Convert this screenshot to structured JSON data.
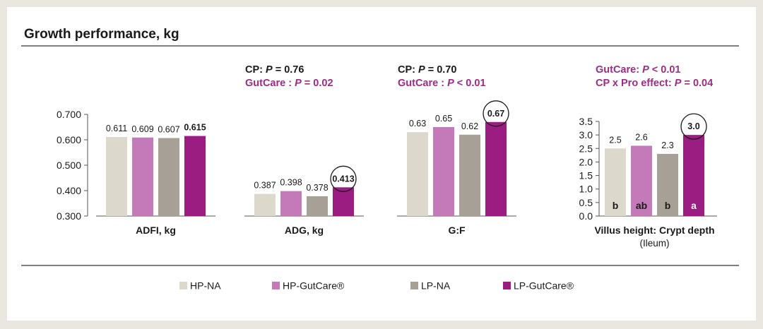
{
  "header": {
    "title": "Growth performance, kg"
  },
  "colors": {
    "HP-NA": "#dcd8cc",
    "HP-GutCare®": "#c47ab8",
    "LP-NA": "#a7a097",
    "LP-GutCare®": "#9b1d82",
    "stat_accent": "#9b2d86",
    "text": "#1a1a1a"
  },
  "legend": {
    "items": [
      "HP-NA",
      "HP-GutCare®",
      "LP-NA",
      "LP-GutCare®"
    ]
  },
  "chart_data": [
    {
      "type": "bar",
      "group": "left",
      "xlabel": "ADFI, kg",
      "categories": [
        "HP-NA",
        "HP-GutCare®",
        "LP-NA",
        "LP-GutCare®"
      ],
      "values": [
        0.611,
        0.609,
        0.607,
        0.615
      ],
      "value_labels": [
        "0.611",
        "0.609",
        "0.607",
        "0.615"
      ],
      "bold_index": 3,
      "circled_index": null,
      "stats": []
    },
    {
      "type": "bar",
      "group": "left",
      "xlabel": "ADG, kg",
      "categories": [
        "HP-NA",
        "HP-GutCare®",
        "LP-NA",
        "LP-GutCare®"
      ],
      "values": [
        0.387,
        0.398,
        0.378,
        0.413
      ],
      "value_labels": [
        "0.387",
        "0.398",
        "0.378",
        "0.413"
      ],
      "bold_index": 3,
      "circled_index": 3,
      "stats": [
        {
          "label": "CP:",
          "p": "P",
          "op": "= 0.76",
          "style": "dark"
        },
        {
          "label": "GutCare :",
          "p": "P",
          "op": "= 0.02",
          "style": "accent"
        }
      ]
    },
    {
      "type": "bar",
      "group": "left",
      "xlabel": "G:F",
      "categories": [
        "HP-NA",
        "HP-GutCare®",
        "LP-NA",
        "LP-GutCare®"
      ],
      "values": [
        0.63,
        0.65,
        0.62,
        0.67
      ],
      "value_labels": [
        "0.63",
        "0.65",
        "0.62",
        "0.67"
      ],
      "bold_index": 3,
      "circled_index": 3,
      "stats": [
        {
          "label": "CP:",
          "p": "P",
          "op": "= 0.70",
          "style": "dark"
        },
        {
          "label": "GutCare :",
          "p": "P",
          "op": "< 0.01",
          "style": "accent"
        }
      ]
    },
    {
      "type": "bar",
      "group": "right",
      "xlabel": "Villus height: Crypt depth",
      "xlabel2": "(Ileum)",
      "categories": [
        "HP-NA",
        "HP-GutCare®",
        "LP-NA",
        "LP-GutCare®"
      ],
      "values": [
        2.5,
        2.6,
        2.3,
        3.0
      ],
      "value_labels": [
        "2.5",
        "2.6",
        "2.3",
        "3.0"
      ],
      "letters": [
        "b",
        "ab",
        "b",
        "a"
      ],
      "bold_index": 3,
      "circled_index": 3,
      "stats": [
        {
          "label": "GutCare:",
          "p": "P",
          "op": "< 0.01",
          "style": "accent"
        },
        {
          "label": "CP x Pro effect:",
          "p": "P",
          "op": "= 0.04",
          "style": "accent"
        }
      ]
    }
  ],
  "axes": {
    "left": {
      "ylim": [
        0.3,
        0.7
      ],
      "ticks": [
        "0.300",
        "0.400",
        "0.500",
        "0.600",
        "0.700"
      ],
      "tick_values": [
        0.3,
        0.4,
        0.5,
        0.6,
        0.7
      ]
    },
    "right": {
      "ylim": [
        0.0,
        3.5
      ],
      "ticks": [
        "0.0",
        "0.5",
        "1.0",
        "1.5",
        "2.0",
        "2.5",
        "3.0",
        "3.5"
      ],
      "tick_values": [
        0,
        0.5,
        1.0,
        1.5,
        2.0,
        2.5,
        3.0,
        3.5
      ]
    }
  }
}
